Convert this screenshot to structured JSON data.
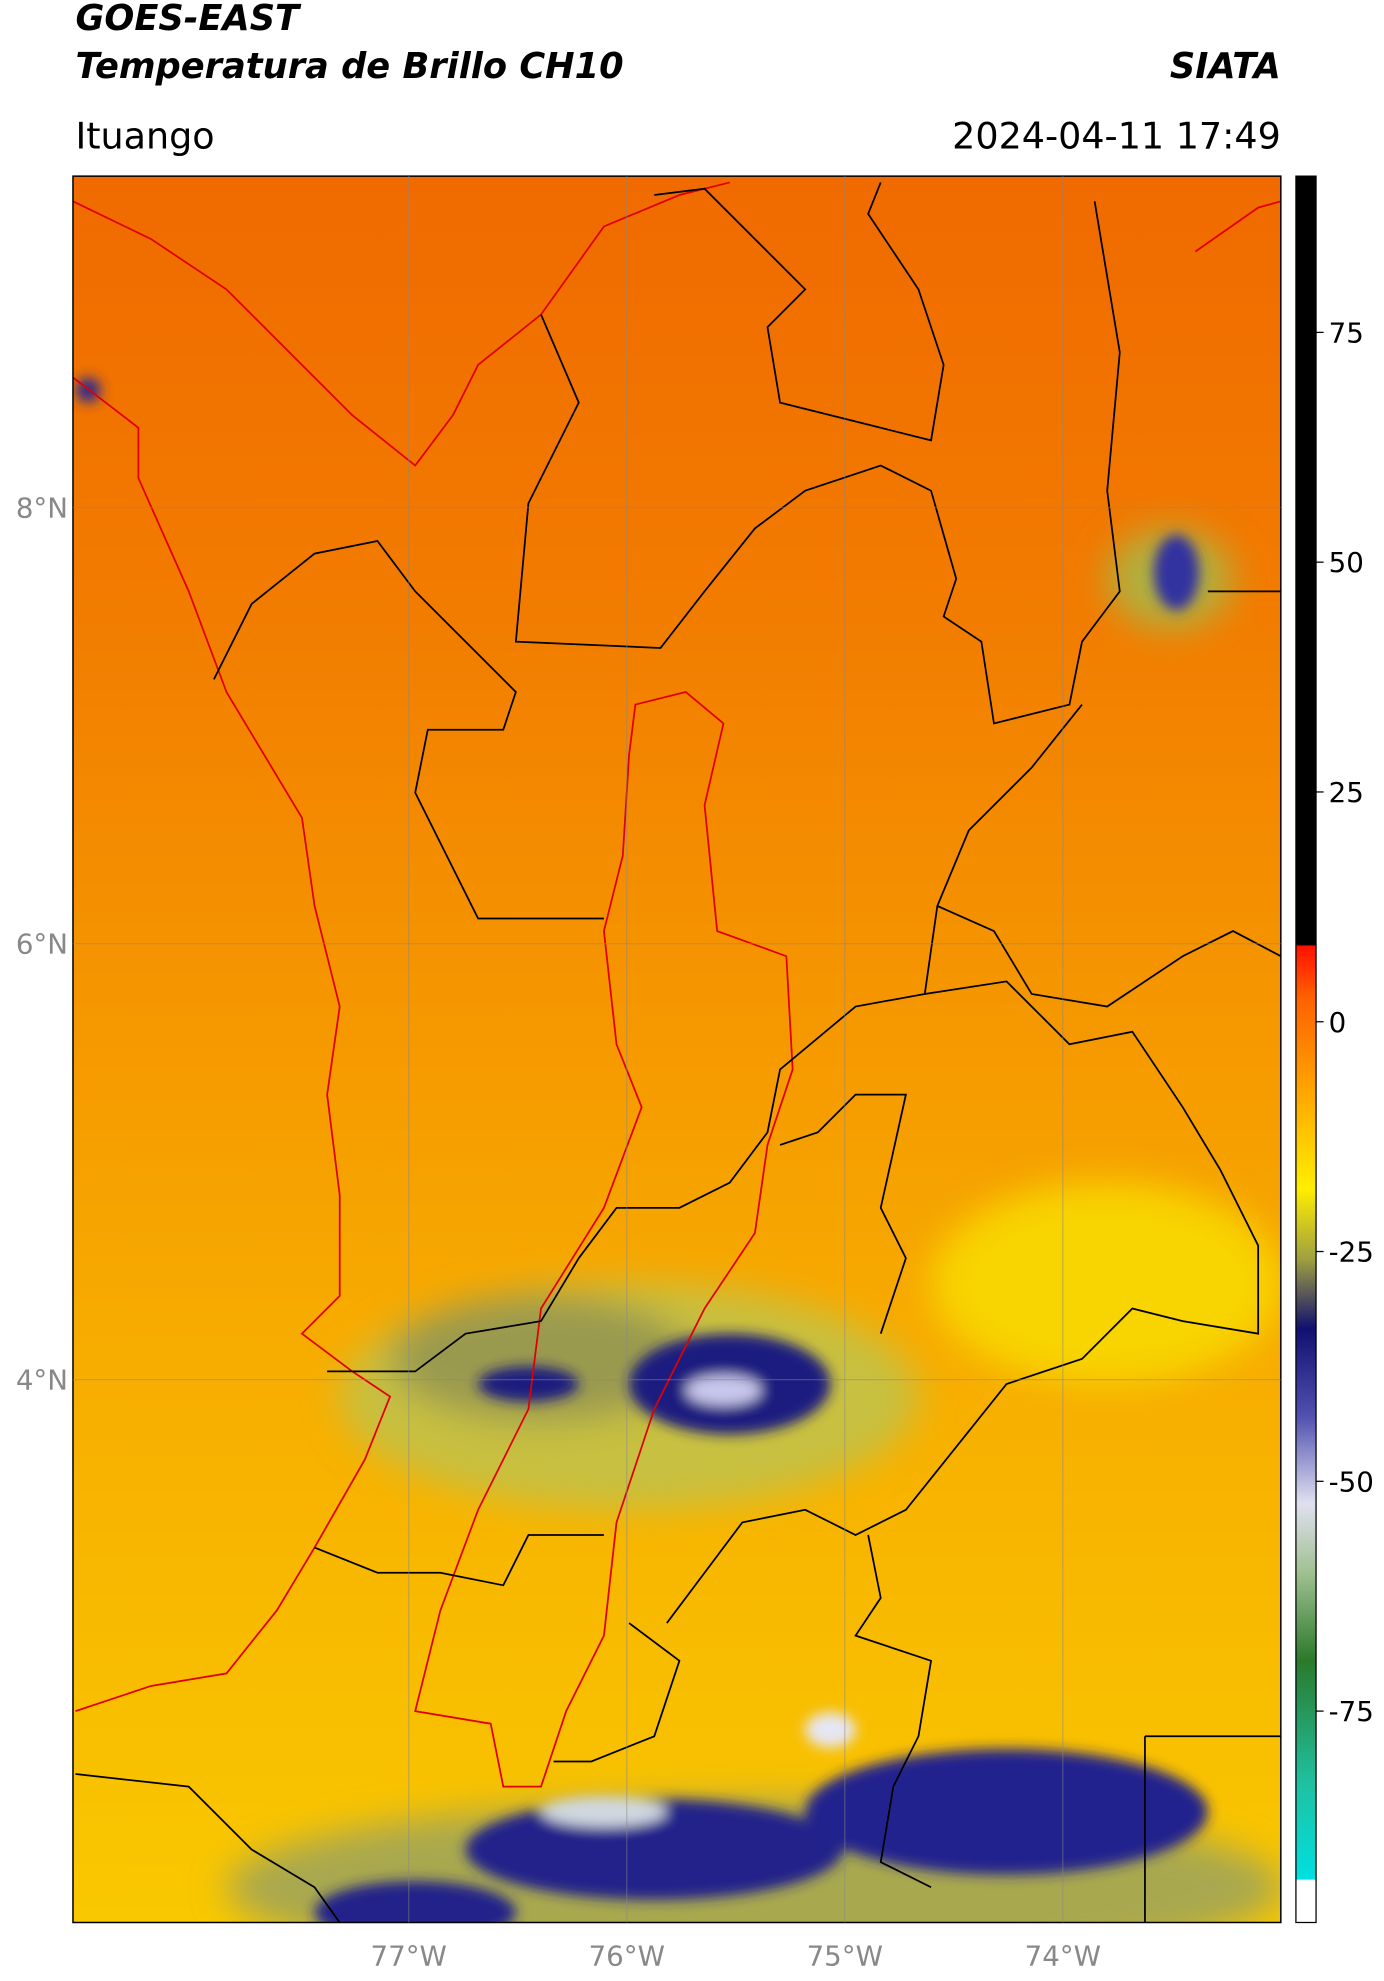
{
  "header": {
    "title": "GOES-EAST",
    "subtitle": "Temperatura de Brillo CH10",
    "brand": "SIATA",
    "location": "Ituango",
    "datetime": "2024-04-11 17:49"
  },
  "map": {
    "xlim": [
      -78.54,
      -73.0
    ],
    "ylim": [
      1.51,
      9.52
    ],
    "xticks": [
      {
        "value": -77,
        "label": "77°W"
      },
      {
        "value": -76,
        "label": "76°W"
      },
      {
        "value": -75,
        "label": "75°W"
      },
      {
        "value": -74,
        "label": "74°W"
      }
    ],
    "yticks": [
      {
        "value": 8,
        "label": "8°N"
      },
      {
        "value": 6,
        "label": "6°N"
      },
      {
        "value": 4,
        "label": "4°N"
      }
    ],
    "grid": true
  },
  "colorbar": {
    "lim": [
      -98,
      92
    ],
    "ticks": [
      75,
      50,
      25,
      0,
      -25,
      -50,
      -75
    ]
  }
}
